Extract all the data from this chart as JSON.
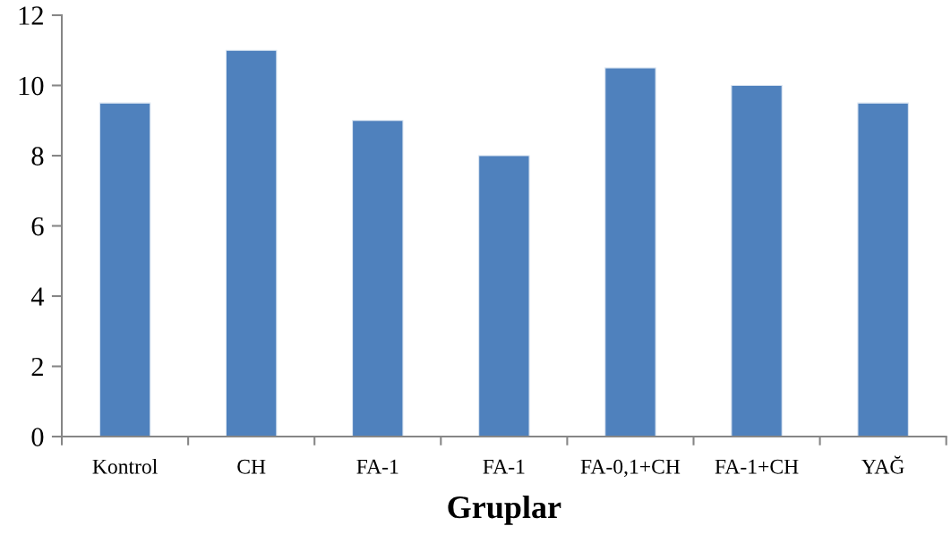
{
  "chart_data": {
    "type": "bar",
    "categories": [
      "Kontrol",
      "CH",
      "FA-1",
      "FA-1",
      "FA-0,1+CH",
      "FA-1+CH",
      "YAĞ"
    ],
    "values": [
      9.5,
      11,
      9,
      8,
      10.5,
      10,
      9.5
    ],
    "color": "#4f81bd",
    "xlabel": "Gruplar",
    "ylim": [
      0,
      12
    ],
    "yticks": [
      0,
      2,
      4,
      6,
      8,
      10,
      12
    ]
  }
}
